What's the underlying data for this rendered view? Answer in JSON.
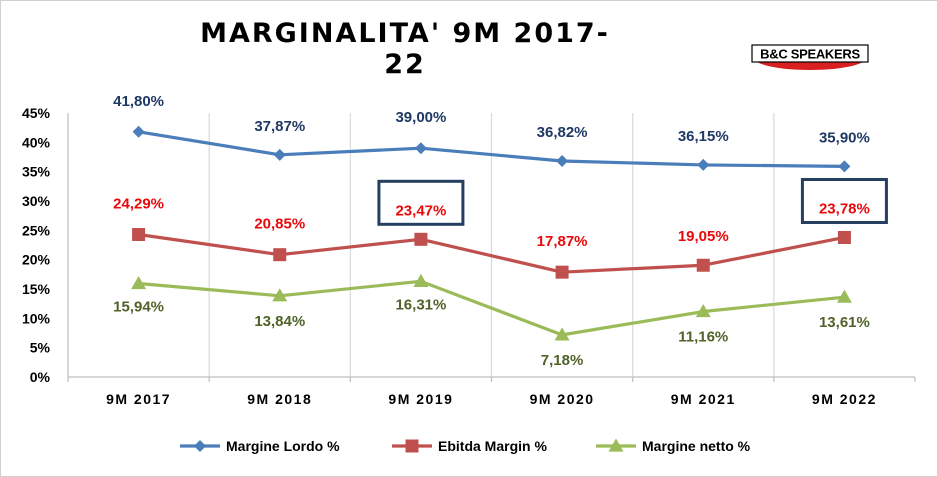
{
  "title": "MARGINALITA' 9M 2017-22",
  "logo": {
    "text": "B&C SPEAKERS"
  },
  "chart_data": {
    "type": "line",
    "title": "MARGINALITA' 9M 2017-22",
    "categories": [
      "9M 2017",
      "9M 2018",
      "9M 2019",
      "9M 2020",
      "9M 2021",
      "9M 2022"
    ],
    "ylim": [
      0,
      45
    ],
    "yticks": [
      "0%",
      "5%",
      "10%",
      "15%",
      "20%",
      "25%",
      "30%",
      "35%",
      "40%",
      "45%"
    ],
    "grid": "vertical",
    "legend_position": "bottom",
    "series": [
      {
        "name": "Margine Lordo %",
        "values": [
          41.8,
          37.87,
          39.0,
          36.82,
          36.15,
          35.9
        ],
        "labels": [
          "41,80%",
          "37,87%",
          "39,00%",
          "36,82%",
          "36,15%",
          "35,90%"
        ],
        "line_color": "#4a7ebb",
        "label_color": "#1f3864",
        "marker": "diamond"
      },
      {
        "name": "Ebitda Margin %",
        "values": [
          24.29,
          20.85,
          23.47,
          17.87,
          19.05,
          23.78
        ],
        "labels": [
          "24,29%",
          "20,85%",
          "23,47%",
          "17,87%",
          "19,05%",
          "23,78%"
        ],
        "line_color": "#c0504d",
        "label_color": "#e8090b",
        "marker": "square"
      },
      {
        "name": "Margine netto %",
        "values": [
          15.94,
          13.84,
          16.31,
          7.18,
          11.16,
          13.61
        ],
        "labels": [
          "15,94%",
          "13,84%",
          "16,31%",
          "7,18%",
          "11,16%",
          "13,61%"
        ],
        "line_color": "#9bbb59",
        "label_color": "#4f6228",
        "marker": "triangle"
      }
    ],
    "highlighted": [
      {
        "series": "Ebitda Margin %",
        "category": "9M 2019"
      },
      {
        "series": "Ebitda Margin %",
        "category": "9M 2022"
      }
    ],
    "highlight_color": "#243f60"
  }
}
